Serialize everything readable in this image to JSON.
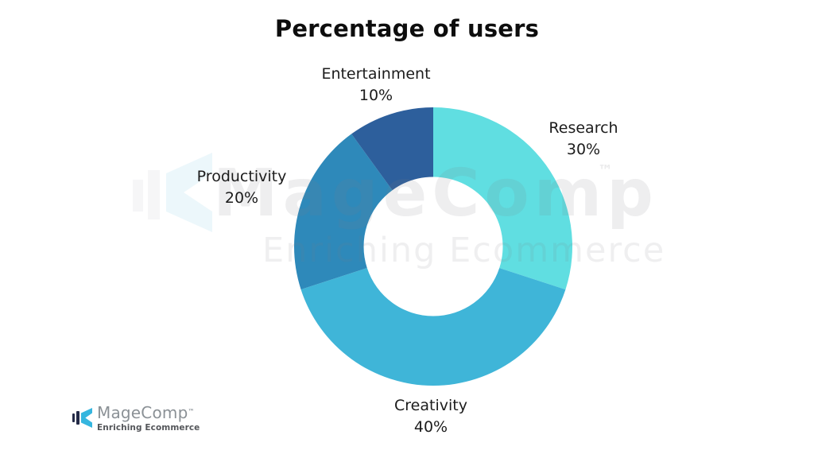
{
  "title": "Percentage of users",
  "chart_data": {
    "type": "pie",
    "subtype": "donut",
    "title": "Percentage of users",
    "categories": [
      "Research",
      "Creativity",
      "Productivity",
      "Entertainment"
    ],
    "values": [
      30,
      40,
      20,
      10
    ],
    "unit": "%",
    "colors": [
      "#60DEE1",
      "#3FB5D8",
      "#2E89BA",
      "#2D5F9C"
    ],
    "start_angle_deg": 0,
    "direction": "clockwise",
    "inner_radius_ratio": 0.5,
    "legend_position": "none",
    "labels_outside": true
  },
  "segments": [
    {
      "name": "Research",
      "value_label": "30%",
      "color": "#60DEE1"
    },
    {
      "name": "Creativity",
      "value_label": "40%",
      "color": "#3FB5D8"
    },
    {
      "name": "Productivity",
      "value_label": "20%",
      "color": "#2E89BA"
    },
    {
      "name": "Entertainment",
      "value_label": "10%",
      "color": "#2D5F9C"
    }
  ],
  "watermark": {
    "brand": "MageComp",
    "tm": "™",
    "tagline": "Enriching Ecommerce"
  },
  "footer_logo": {
    "brand": "MageComp",
    "tm": "™",
    "tagline": "Enriching Ecommerce"
  },
  "background_color": "#ffffff"
}
